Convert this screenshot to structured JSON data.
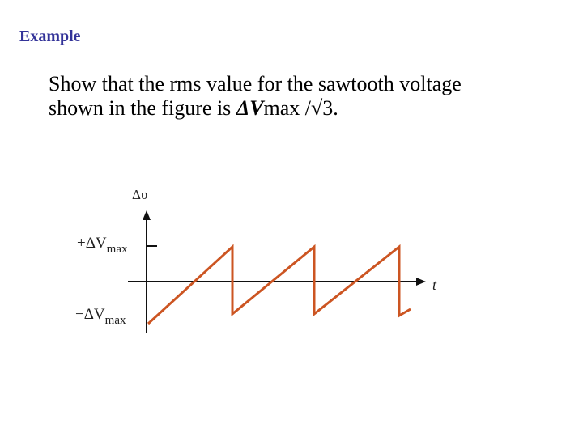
{
  "header": {
    "title": "Example"
  },
  "body": {
    "line1": "Show that the rms value for the sawtooth voltage",
    "line2_start": "shown in the figure is ",
    "symbol": "ΔV",
    "line2_end": "max  /√3."
  },
  "figure": {
    "y_axis_label": "Δυ",
    "x_axis_label": "t",
    "upper_label": {
      "text": "+ΔV",
      "subscript": "max"
    },
    "lower_label": {
      "text": "−ΔV",
      "subscript": "max"
    }
  }
}
